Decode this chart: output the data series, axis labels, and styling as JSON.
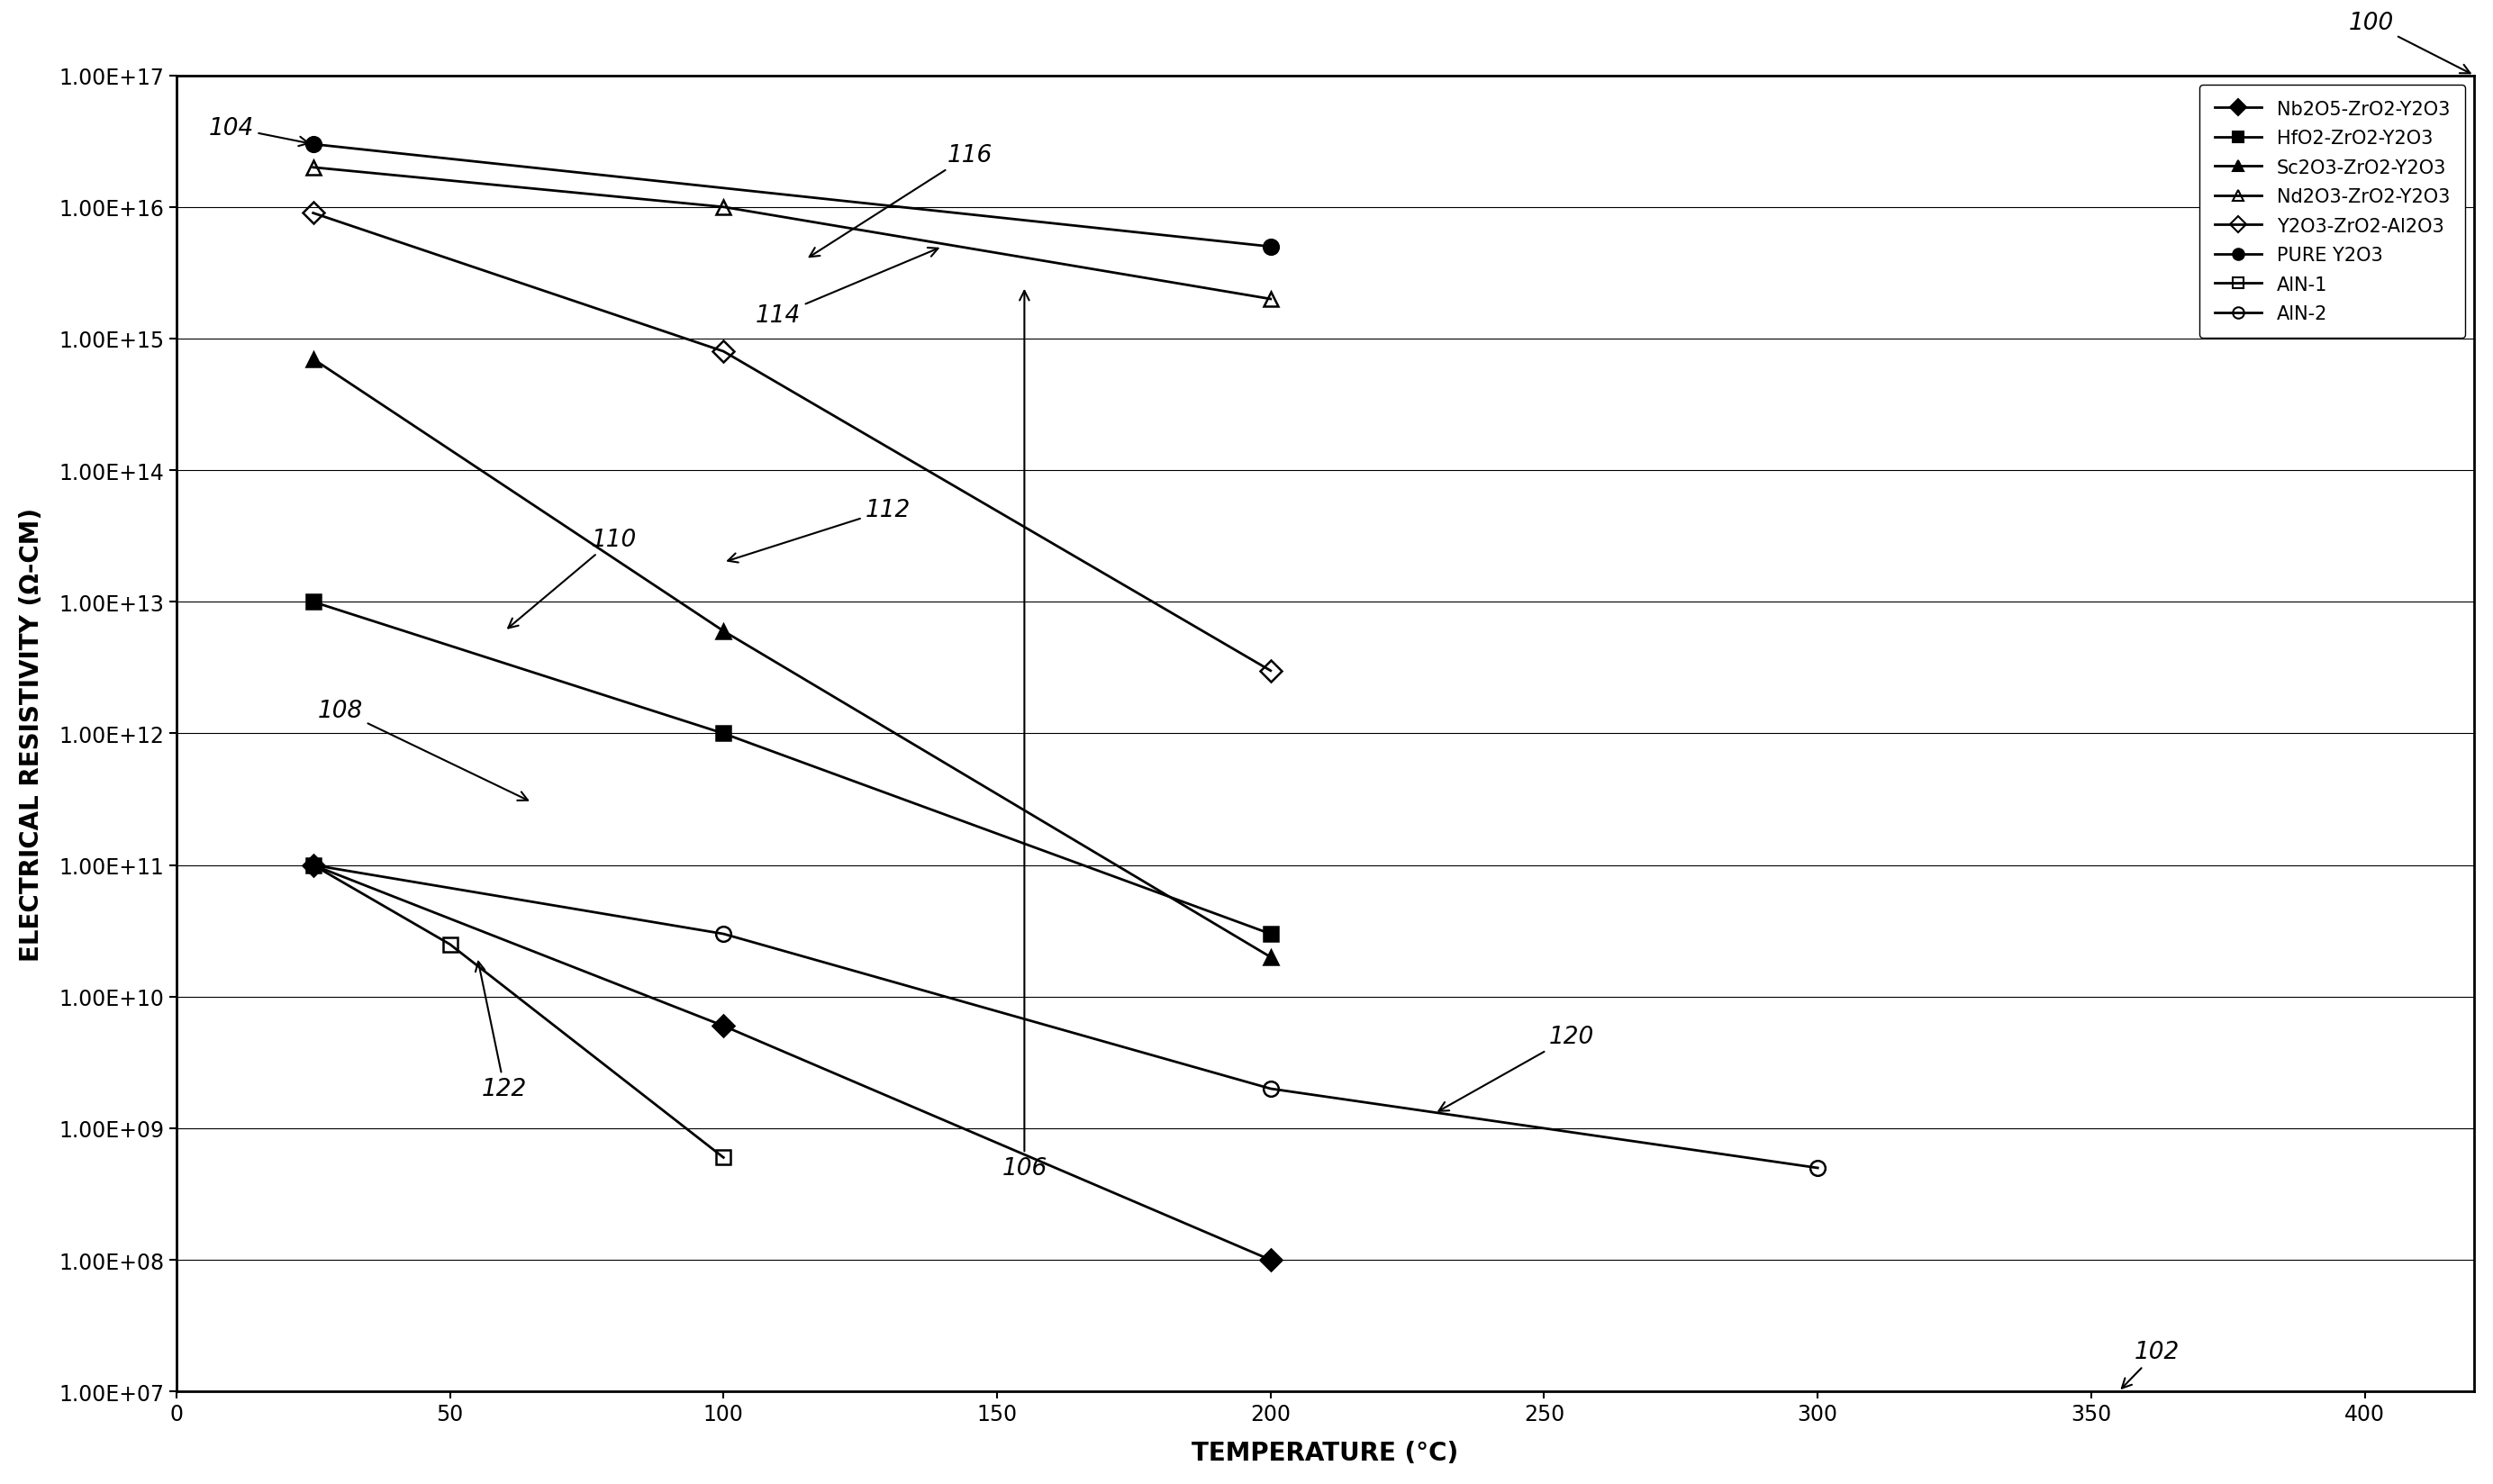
{
  "title": "",
  "xlabel": "TEMPERATURE (°C)",
  "ylabel": "ELECTRICAL RESISTIVITY (Ω-CM)",
  "xlim": [
    0,
    420
  ],
  "ylim_log": [
    7,
    17
  ],
  "xticks": [
    0,
    50,
    100,
    150,
    200,
    250,
    300,
    350,
    400
  ],
  "ytick_labels": [
    "1.00E+07",
    "1.00E+08",
    "1.00E+09",
    "1.00E+10",
    "1.00E+11",
    "1.00E+12",
    "1.00E+13",
    "1.00E+14",
    "1.00E+15",
    "1.00E+16",
    "1.00E+17"
  ],
  "series": [
    {
      "label": "Nb2O5-ZrO2-Y2O3",
      "id": 108,
      "x": [
        25,
        100,
        200
      ],
      "y": [
        100000000000.0,
        6000000000.0,
        100000000.0
      ],
      "marker": "D",
      "marker_filled": true,
      "linestyle": "-",
      "color": "#000000"
    },
    {
      "label": "HfO2-ZrO2-Y2O3",
      "id": 110,
      "x": [
        25,
        100,
        200
      ],
      "y": [
        10000000000000.0,
        1000000000000.0,
        30000000000.0
      ],
      "marker": "s",
      "marker_filled": true,
      "linestyle": "-",
      "color": "#000000"
    },
    {
      "label": "Sc2O3-ZrO2-Y2O3",
      "id": 112,
      "x": [
        25,
        100,
        200
      ],
      "y": [
        700000000000000.0,
        6000000000000.0,
        20000000000.0
      ],
      "marker": "^",
      "marker_filled": true,
      "linestyle": "-",
      "color": "#000000"
    },
    {
      "label": "Nd2O3-ZrO2-Y2O3",
      "id": 114,
      "x": [
        25,
        100,
        200
      ],
      "y": [
        2e+16,
        1e+16,
        2000000000000000.0
      ],
      "marker": "^",
      "marker_filled": false,
      "linestyle": "-",
      "color": "#000000"
    },
    {
      "label": "Y2O3-ZrO2-Al2O3",
      "id": 116,
      "x": [
        25,
        100,
        200
      ],
      "y": [
        9000000000000000.0,
        800000000000000.0,
        3000000000000.0
      ],
      "marker": "D",
      "marker_filled": false,
      "linestyle": "-",
      "color": "#000000"
    },
    {
      "label": "PURE Y2O3",
      "id": 106,
      "x": [
        25,
        200
      ],
      "y": [
        3e+16,
        5000000000000000.0
      ],
      "marker": "o",
      "marker_filled": true,
      "linestyle": "-",
      "color": "#000000"
    },
    {
      "label": "AlN-1",
      "id": 122,
      "x": [
        25,
        50,
        100
      ],
      "y": [
        100000000000.0,
        25000000000.0,
        600000000.0
      ],
      "marker": "s",
      "marker_filled": false,
      "linestyle": "-",
      "color": "#000000"
    },
    {
      "label": "AlN-2",
      "id": 120,
      "x": [
        25,
        100,
        200,
        300
      ],
      "y": [
        100000000000.0,
        30000000000.0,
        2000000000.0,
        500000000.0
      ],
      "marker": "o",
      "marker_filled": false,
      "linestyle": "-",
      "color": "#000000"
    }
  ],
  "background_color": "#ffffff",
  "grid_color": "#000000",
  "fontsize_axis_label": 20,
  "fontsize_tick": 17,
  "fontsize_legend": 15,
  "fontsize_annotation": 19,
  "markersize": 12,
  "linewidth": 2
}
